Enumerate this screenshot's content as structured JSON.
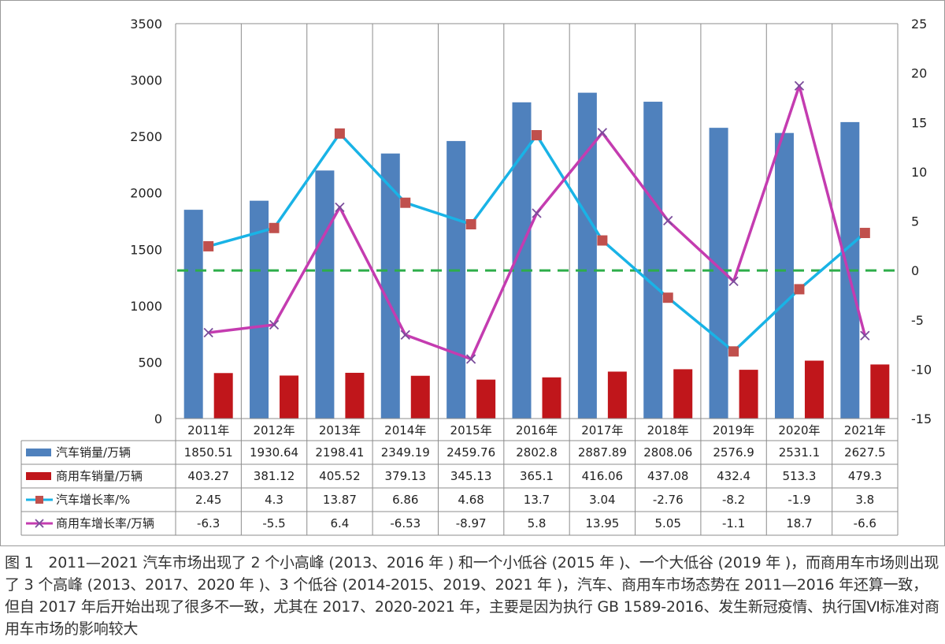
{
  "chart_data": {
    "type": "bar",
    "categories": [
      "2011年",
      "2012年",
      "2013年",
      "2014年",
      "2015年",
      "2016年",
      "2017年",
      "2018年",
      "2019年",
      "2020年",
      "2021年"
    ],
    "series": [
      {
        "name": "汽车销量/万辆",
        "kind": "bar",
        "axis": "left",
        "color": "#4f81bd",
        "values": [
          1850.51,
          1930.64,
          2198.41,
          2349.19,
          2459.76,
          2802.8,
          2887.89,
          2808.06,
          2576.9,
          2531.1,
          2627.5
        ],
        "labels": [
          "1850.51",
          "1930.64",
          "2198.41",
          "2349.19",
          "2459.76",
          "2802.8",
          "2887.89",
          "2808.06",
          "2576.9",
          "2531.1",
          "2627.5"
        ]
      },
      {
        "name": "商用车销量/万辆",
        "kind": "bar",
        "axis": "left",
        "color": "#c0161b",
        "values": [
          403.27,
          381.12,
          405.52,
          379.13,
          345.13,
          365.1,
          416.06,
          437.08,
          432.4,
          513.3,
          479.3
        ],
        "labels": [
          "403.27",
          "381.12",
          "405.52",
          "379.13",
          "345.13",
          "365.1",
          "416.06",
          "437.08",
          "432.4",
          "513.3",
          "479.3"
        ]
      },
      {
        "name": "汽车增长率/%",
        "kind": "line",
        "axis": "right",
        "color": "#19b3e6",
        "marker": "square",
        "marker_color": "#c0504d",
        "values": [
          2.45,
          4.3,
          13.87,
          6.86,
          4.68,
          13.7,
          3.04,
          -2.76,
          -8.2,
          -1.9,
          3.8
        ],
        "labels": [
          "2.45",
          "4.3",
          "13.87",
          "6.86",
          "4.68",
          "13.7",
          "3.04",
          "-2.76",
          "-8.2",
          "-1.9",
          "3.8"
        ]
      },
      {
        "name": "商用车增长率/万辆",
        "kind": "line",
        "axis": "right",
        "color": "#c43cb0",
        "marker": "x",
        "marker_color": "#7a4d9b",
        "values": [
          -6.3,
          -5.5,
          6.4,
          -6.53,
          -8.97,
          5.8,
          13.95,
          5.05,
          -1.1,
          18.7,
          -6.6
        ],
        "labels": [
          "-6.3",
          "-5.5",
          "6.4",
          "-6.53",
          "-8.97",
          "5.8",
          "13.95",
          "5.05",
          "-1.1",
          "18.7",
          "-6.6"
        ]
      }
    ],
    "left_axis": {
      "ylim": [
        0,
        3500
      ],
      "ticks": [
        "0",
        "500",
        "1000",
        "1500",
        "2000",
        "2500",
        "3000",
        "3500"
      ]
    },
    "right_axis": {
      "ylim": [
        -15,
        25
      ],
      "ticks": [
        "-15",
        "-10",
        "-5",
        "0",
        "5",
        "10",
        "15",
        "20",
        "25"
      ]
    },
    "reference_line": {
      "axis": "right",
      "value": 0,
      "style": "dashed",
      "color": "#2ead4a"
    },
    "grid": true,
    "data_table": true
  },
  "caption": {
    "figure_label": "图 1",
    "text": "2011—2021 汽车市场出现了 2 个小高峰 (2013、2016 年 ) 和一个小低谷 (2015 年 )、一个大低谷 (2019 年 )，而商用车市场则出现了 3 个高峰 (2013、2017、2020 年 )、3 个低谷 (2014-2015、2019、2021 年 )，汽车、商用车市场态势在 2011—2016 年还算一致，但自 2017 年后开始出现了很多不一致，尤其在 2017、2020-2021 年，主要是因为执行 GB 1589-2016、发生新冠疫情、执行国Ⅵ标准对商用车市场的影响较大"
  }
}
